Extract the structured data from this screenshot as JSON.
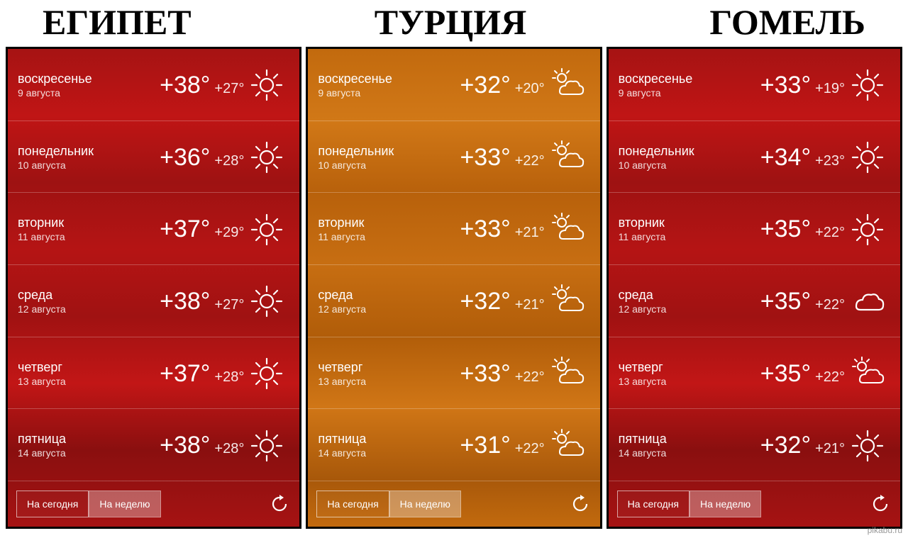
{
  "titles": [
    "ЕГИПЕТ",
    "ТУРЦИЯ",
    "ГОМЕЛЬ"
  ],
  "footer": {
    "btn_today": "На сегодня",
    "btn_week": "На неделю"
  },
  "watermark": "pikabu.ru",
  "colors": {
    "panel_red_bg": "#a61313",
    "panel_orange_bg": "#c26a0e",
    "text": "#ffffff",
    "title_text": "#000000",
    "icon_stroke": "#ffffff"
  },
  "panels": [
    {
      "variant": "red",
      "rows": [
        {
          "day": "воскресенье",
          "date": "9 августа",
          "hi": "+38°",
          "lo": "+27°",
          "icon": "sun"
        },
        {
          "day": "понедельник",
          "date": "10 августа",
          "hi": "+36°",
          "lo": "+28°",
          "icon": "sun"
        },
        {
          "day": "вторник",
          "date": "11 августа",
          "hi": "+37°",
          "lo": "+29°",
          "icon": "sun"
        },
        {
          "day": "среда",
          "date": "12 августа",
          "hi": "+38°",
          "lo": "+27°",
          "icon": "sun"
        },
        {
          "day": "четверг",
          "date": "13 августа",
          "hi": "+37°",
          "lo": "+28°",
          "icon": "sun"
        },
        {
          "day": "пятница",
          "date": "14 августа",
          "hi": "+38°",
          "lo": "+28°",
          "icon": "sun"
        }
      ]
    },
    {
      "variant": "orange",
      "rows": [
        {
          "day": "воскресенье",
          "date": "9 августа",
          "hi": "+32°",
          "lo": "+20°",
          "icon": "partly"
        },
        {
          "day": "понедельник",
          "date": "10 августа",
          "hi": "+33°",
          "lo": "+22°",
          "icon": "partly"
        },
        {
          "day": "вторник",
          "date": "11 августа",
          "hi": "+33°",
          "lo": "+21°",
          "icon": "partly"
        },
        {
          "day": "среда",
          "date": "12 августа",
          "hi": "+32°",
          "lo": "+21°",
          "icon": "partly"
        },
        {
          "day": "четверг",
          "date": "13 августа",
          "hi": "+33°",
          "lo": "+22°",
          "icon": "partly"
        },
        {
          "day": "пятница",
          "date": "14 августа",
          "hi": "+31°",
          "lo": "+22°",
          "icon": "partly"
        }
      ]
    },
    {
      "variant": "red",
      "rows": [
        {
          "day": "воскресенье",
          "date": "9 августа",
          "hi": "+33°",
          "lo": "+19°",
          "icon": "sun"
        },
        {
          "day": "понедельник",
          "date": "10 августа",
          "hi": "+34°",
          "lo": "+23°",
          "icon": "sun"
        },
        {
          "day": "вторник",
          "date": "11 августа",
          "hi": "+35°",
          "lo": "+22°",
          "icon": "sun"
        },
        {
          "day": "среда",
          "date": "12 августа",
          "hi": "+35°",
          "lo": "+22°",
          "icon": "cloud"
        },
        {
          "day": "четверг",
          "date": "13 августа",
          "hi": "+35°",
          "lo": "+22°",
          "icon": "partly"
        },
        {
          "day": "пятница",
          "date": "14 августа",
          "hi": "+32°",
          "lo": "+21°",
          "icon": "sun"
        }
      ]
    }
  ]
}
